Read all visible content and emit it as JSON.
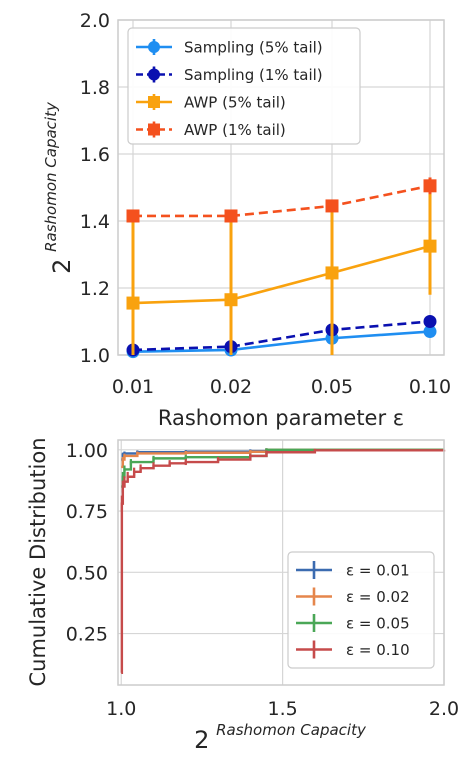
{
  "chart_data": [
    {
      "type": "line",
      "x_categories": [
        "0.01",
        "0.02",
        "0.05",
        "0.10"
      ],
      "xlabel": "Rashomon parameter ε",
      "ylabel": {
        "base": "2",
        "exponent": "Rashomon  Capacity"
      },
      "ylim": [
        1.0,
        2.0
      ],
      "yticks": [
        "1.0",
        "1.2",
        "1.4",
        "1.6",
        "1.8",
        "2.0"
      ],
      "grid": true,
      "legend": "top-left",
      "series": [
        {
          "name": "Sampling (5% tail)",
          "color": "#1f8ef1",
          "marker": "circle",
          "linestyle": "solid",
          "values": [
            1.01,
            1.015,
            1.05,
            1.07
          ],
          "err_low": [
            1.0,
            1.01,
            1.04,
            1.06
          ],
          "err_high": [
            1.02,
            1.025,
            1.06,
            1.085
          ]
        },
        {
          "name": "Sampling (1% tail)",
          "color": "#0a10b0",
          "marker": "circle",
          "linestyle": "dashed",
          "values": [
            1.015,
            1.025,
            1.075,
            1.1
          ],
          "err_low": [
            1.005,
            1.015,
            1.065,
            1.09
          ],
          "err_high": [
            1.025,
            1.035,
            1.085,
            1.11
          ]
        },
        {
          "name": "AWP (5% tail)",
          "color": "#f9a20e",
          "marker": "square",
          "linestyle": "solid",
          "values": [
            1.155,
            1.165,
            1.245,
            1.325
          ],
          "err_low": [
            1.0,
            1.0,
            1.0,
            1.18
          ],
          "err_high": [
            1.41,
            1.41,
            1.44,
            1.5
          ]
        },
        {
          "name": "AWP (1% tail)",
          "color": "#f4511e",
          "marker": "square",
          "linestyle": "dashed",
          "values": [
            1.415,
            1.415,
            1.445,
            1.505
          ],
          "err_low": [
            1.41,
            1.41,
            1.44,
            1.48
          ],
          "err_high": [
            1.42,
            1.42,
            1.45,
            1.53
          ]
        }
      ]
    },
    {
      "type": "line",
      "xlabel": {
        "base": "2",
        "exponent": "Rashomon  Capacity"
      },
      "ylabel": "Cumulative Distribution",
      "xlim": [
        0.99,
        2.0
      ],
      "ylim": [
        0.04,
        1.04
      ],
      "xticks": [
        "1.0",
        "1.5",
        "2.0"
      ],
      "yticks": [
        "0.25",
        "0.50",
        "0.75",
        "1.00"
      ],
      "grid": true,
      "legend": "bottom-right",
      "series": [
        {
          "name": "ε = 0.01",
          "color": "#3b6bb0",
          "x": [
            1.0,
            1.005,
            1.01,
            1.05,
            1.2,
            1.4,
            1.45,
            2.0
          ],
          "y": [
            0.96,
            0.98,
            0.985,
            0.99,
            0.992,
            0.995,
            1.0,
            1.0
          ]
        },
        {
          "name": "ε = 0.02",
          "color": "#e5864c",
          "x": [
            1.0,
            1.005,
            1.01,
            1.05,
            1.2,
            1.4,
            1.45,
            2.0
          ],
          "y": [
            0.93,
            0.96,
            0.975,
            0.985,
            0.988,
            0.992,
            1.0,
            1.0
          ]
        },
        {
          "name": "ε = 0.05",
          "color": "#4aa757",
          "x": [
            1.0,
            1.005,
            1.01,
            1.03,
            1.1,
            1.2,
            1.4,
            1.45,
            2.0
          ],
          "y": [
            0.85,
            0.89,
            0.92,
            0.95,
            0.965,
            0.97,
            0.975,
            1.0,
            1.0
          ]
        },
        {
          "name": "ε = 0.10",
          "color": "#c64b4b",
          "x": [
            1.0,
            1.002,
            1.005,
            1.01,
            1.02,
            1.04,
            1.06,
            1.1,
            1.15,
            1.2,
            1.3,
            1.4,
            1.45,
            1.6,
            2.0
          ],
          "y": [
            0.09,
            0.78,
            0.85,
            0.87,
            0.89,
            0.91,
            0.925,
            0.935,
            0.945,
            0.95,
            0.96,
            0.975,
            0.99,
            0.998,
            1.0
          ]
        }
      ]
    }
  ]
}
